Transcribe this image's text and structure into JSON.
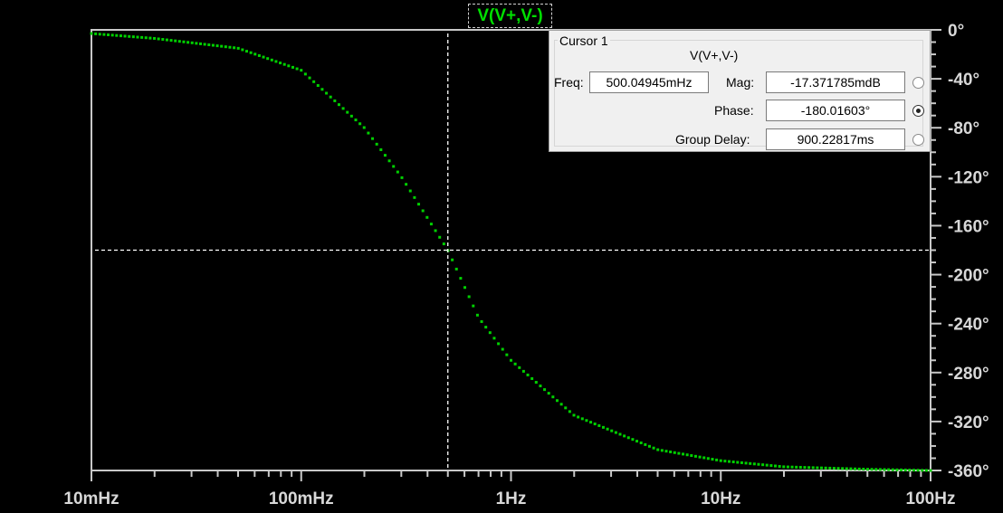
{
  "chart_data": {
    "type": "line",
    "title": "V(V+,V-)",
    "xscale": "log",
    "xlim": [
      "10mHz",
      "100Hz"
    ],
    "xlim_hz": [
      0.01,
      100
    ],
    "ylim": [
      -360,
      0
    ],
    "ylabel_unit": "°",
    "x_tick_labels": [
      "10mHz",
      "100mHz",
      "1Hz",
      "10Hz",
      "100Hz"
    ],
    "y_tick_labels": [
      "0°",
      "-40°",
      "-80°",
      "-120°",
      "-160°",
      "-200°",
      "-240°",
      "-280°",
      "-320°",
      "-360°"
    ],
    "series": [
      {
        "color": "#00d000",
        "style": "dotted",
        "x": [
          0.01,
          0.02,
          0.05,
          0.1,
          0.2,
          0.3,
          0.5,
          0.7,
          1.0,
          2.0,
          5.0,
          10,
          20,
          50,
          100
        ],
        "y": [
          -3,
          -7,
          -15,
          -33,
          -80,
          -120,
          -180,
          -235,
          -270,
          -315,
          -343,
          -352,
          -357,
          -359,
          -360
        ]
      }
    ],
    "cursor": {
      "x_hz": 0.50004945,
      "y_deg": -180.01603
    },
    "colors": {
      "background": "#000000",
      "axes": "#c8c8c8",
      "trace": "#00d000",
      "cursor": "#ffffff"
    }
  },
  "cursor_panel": {
    "group_title": "Cursor 1",
    "trace_name": "V(V+,V-)",
    "freq_label": "Freq:",
    "freq_value": "500.04945mHz",
    "mag_label": "Mag:",
    "mag_value": "-17.371785mdB",
    "phase_label": "Phase:",
    "phase_value": "-180.01603°",
    "group_delay_label": "Group Delay:",
    "group_delay_value": "900.22817ms",
    "selected_readout": "phase"
  }
}
